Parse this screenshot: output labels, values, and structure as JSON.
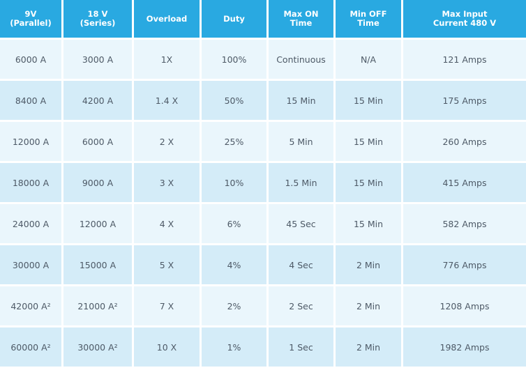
{
  "colors": {
    "header": "#29a9e1",
    "row_light": "#eaf6fc",
    "row_dark": "#d4ecf8",
    "text": "#4d5966"
  },
  "headers": [
    [
      "9V",
      "(Parallel)"
    ],
    [
      "18 V",
      "(Series)"
    ],
    [
      "Overload",
      ""
    ],
    [
      "Duty",
      ""
    ],
    [
      "Max ON",
      "Time"
    ],
    [
      "Min OFF",
      "Time"
    ],
    [
      "Max Input",
      "Current 480 V"
    ]
  ],
  "rows": [
    [
      "6000 A",
      "3000 A",
      "1X",
      "100%",
      "Continuous",
      "N/A",
      "121 Amps"
    ],
    [
      "8400 A",
      "4200 A",
      "1.4 X",
      "50%",
      "15 Min",
      "15 Min",
      "175 Amps"
    ],
    [
      "12000 A",
      "6000 A",
      "2 X",
      "25%",
      "5 Min",
      "15 Min",
      "260 Amps"
    ],
    [
      "18000 A",
      "9000 A",
      "3 X",
      "10%",
      "1.5 Min",
      "15 Min",
      "415 Amps"
    ],
    [
      "24000 A",
      "12000 A",
      "4 X",
      "6%",
      "45 Sec",
      "15 Min",
      "582 Amps"
    ],
    [
      "30000 A",
      "15000 A",
      "5 X",
      "4%",
      "4 Sec",
      "2 Min",
      "776 Amps"
    ],
    [
      "42000 A²",
      "21000 A²",
      "7 X",
      "2%",
      "2 Sec",
      "2 Min",
      "1208 Amps"
    ],
    [
      "60000 A²",
      "30000 A²",
      "10 X",
      "1%",
      "1 Sec",
      "2 Min",
      "1982 Amps"
    ]
  ]
}
